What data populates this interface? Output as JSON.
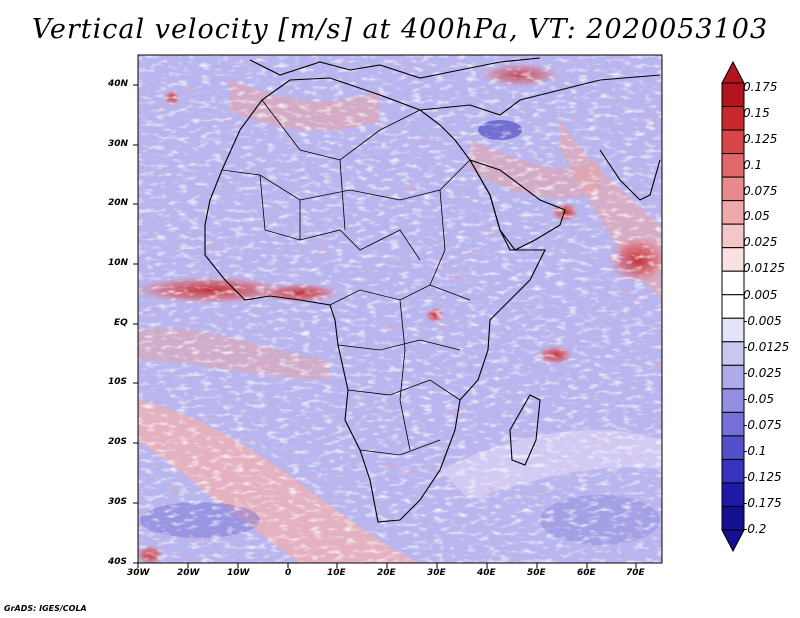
{
  "title": "Vertical velocity [m/s] at 400hPa, VT: 2020053103",
  "credit": "GrADS: IGES/COLA",
  "map": {
    "region": "Africa and surrounding ocean",
    "lon_labels": [
      "30W",
      "20W",
      "10W",
      "0",
      "10E",
      "20E",
      "30E",
      "40E",
      "50E",
      "60E",
      "70E"
    ],
    "lat_labels": [
      "40N",
      "30N",
      "20N",
      "10N",
      "EQ",
      "10S",
      "20S",
      "30S",
      "40S"
    ]
  },
  "colorbar": {
    "labels": [
      "0.175",
      "0.15",
      "0.125",
      "0.1",
      "0.075",
      "0.05",
      "0.025",
      "0.0125",
      "0.005",
      "-0.005",
      "-0.0125",
      "-0.025",
      "-0.05",
      "-0.075",
      "-0.1",
      "-0.125",
      "-0.175",
      "-0.2"
    ],
    "colors": [
      "#b0141c",
      "#c8282d",
      "#d7474a",
      "#e0676a",
      "#e8898b",
      "#efa9ab",
      "#f5c6c7",
      "#fae1e2",
      "#ffffff",
      "#ffffff",
      "#e4e4f8",
      "#c9c8f1",
      "#aeabea",
      "#928ee1",
      "#7470d8",
      "#5450cb",
      "#3833bc",
      "#1f1aa6",
      "#14108f"
    ]
  }
}
